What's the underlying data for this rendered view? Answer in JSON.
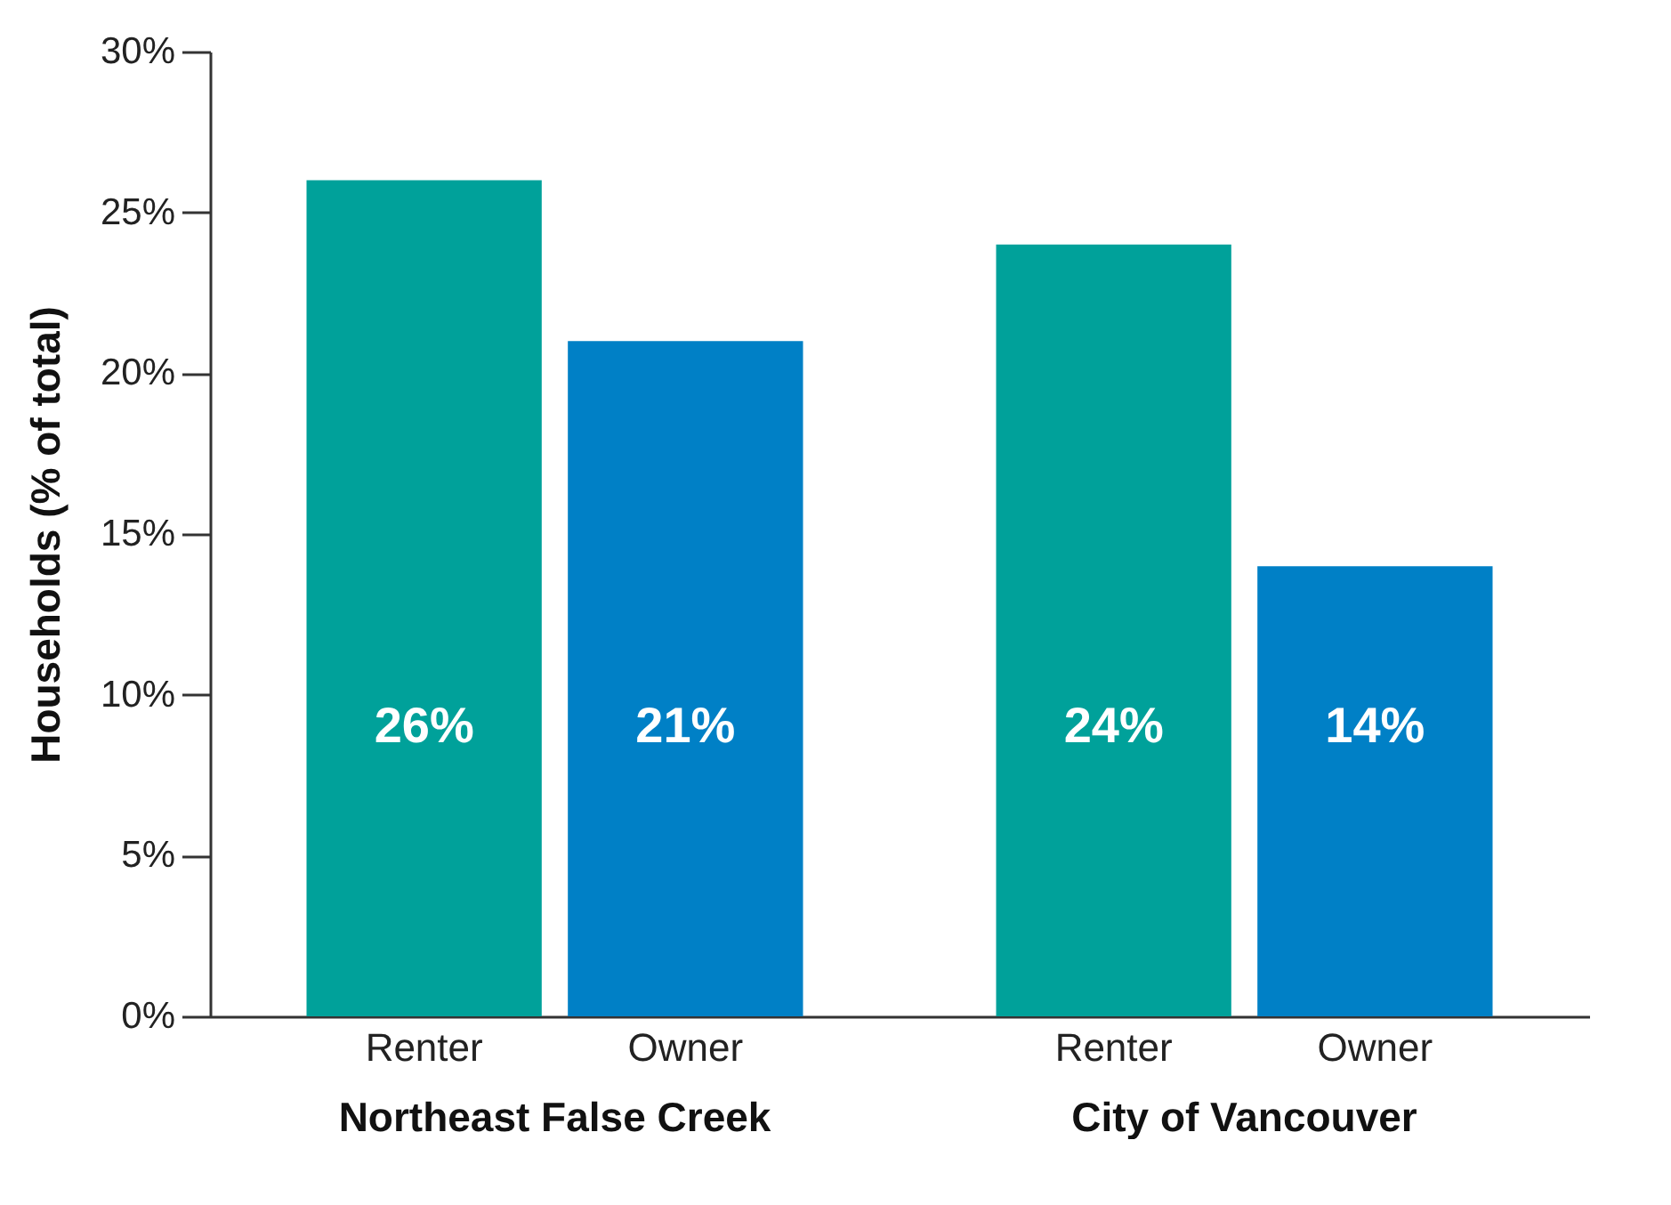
{
  "chart_data": {
    "type": "bar",
    "ylabel": "Households (% of total)",
    "categories": [
      "Northeast False Creek",
      "City of Vancouver"
    ],
    "series": [
      {
        "name": "Renter",
        "color": "#00a19a",
        "values": [
          26,
          24
        ]
      },
      {
        "name": "Owner",
        "color": "#0080c6",
        "values": [
          21,
          14
        ]
      }
    ],
    "value_labels": [
      [
        "26%",
        "24%"
      ],
      [
        "21%",
        "14%"
      ]
    ],
    "ylim": [
      0,
      30
    ],
    "yticks": [
      {
        "value": 0,
        "label": "0%"
      },
      {
        "value": 5,
        "label": "5%"
      },
      {
        "value": 10,
        "label": "10%"
      },
      {
        "value": 15,
        "label": "15%"
      },
      {
        "value": 20,
        "label": "20%"
      },
      {
        "value": 25,
        "label": "25%"
      },
      {
        "value": 30,
        "label": "30%"
      }
    ],
    "grid": false,
    "legend": false
  }
}
